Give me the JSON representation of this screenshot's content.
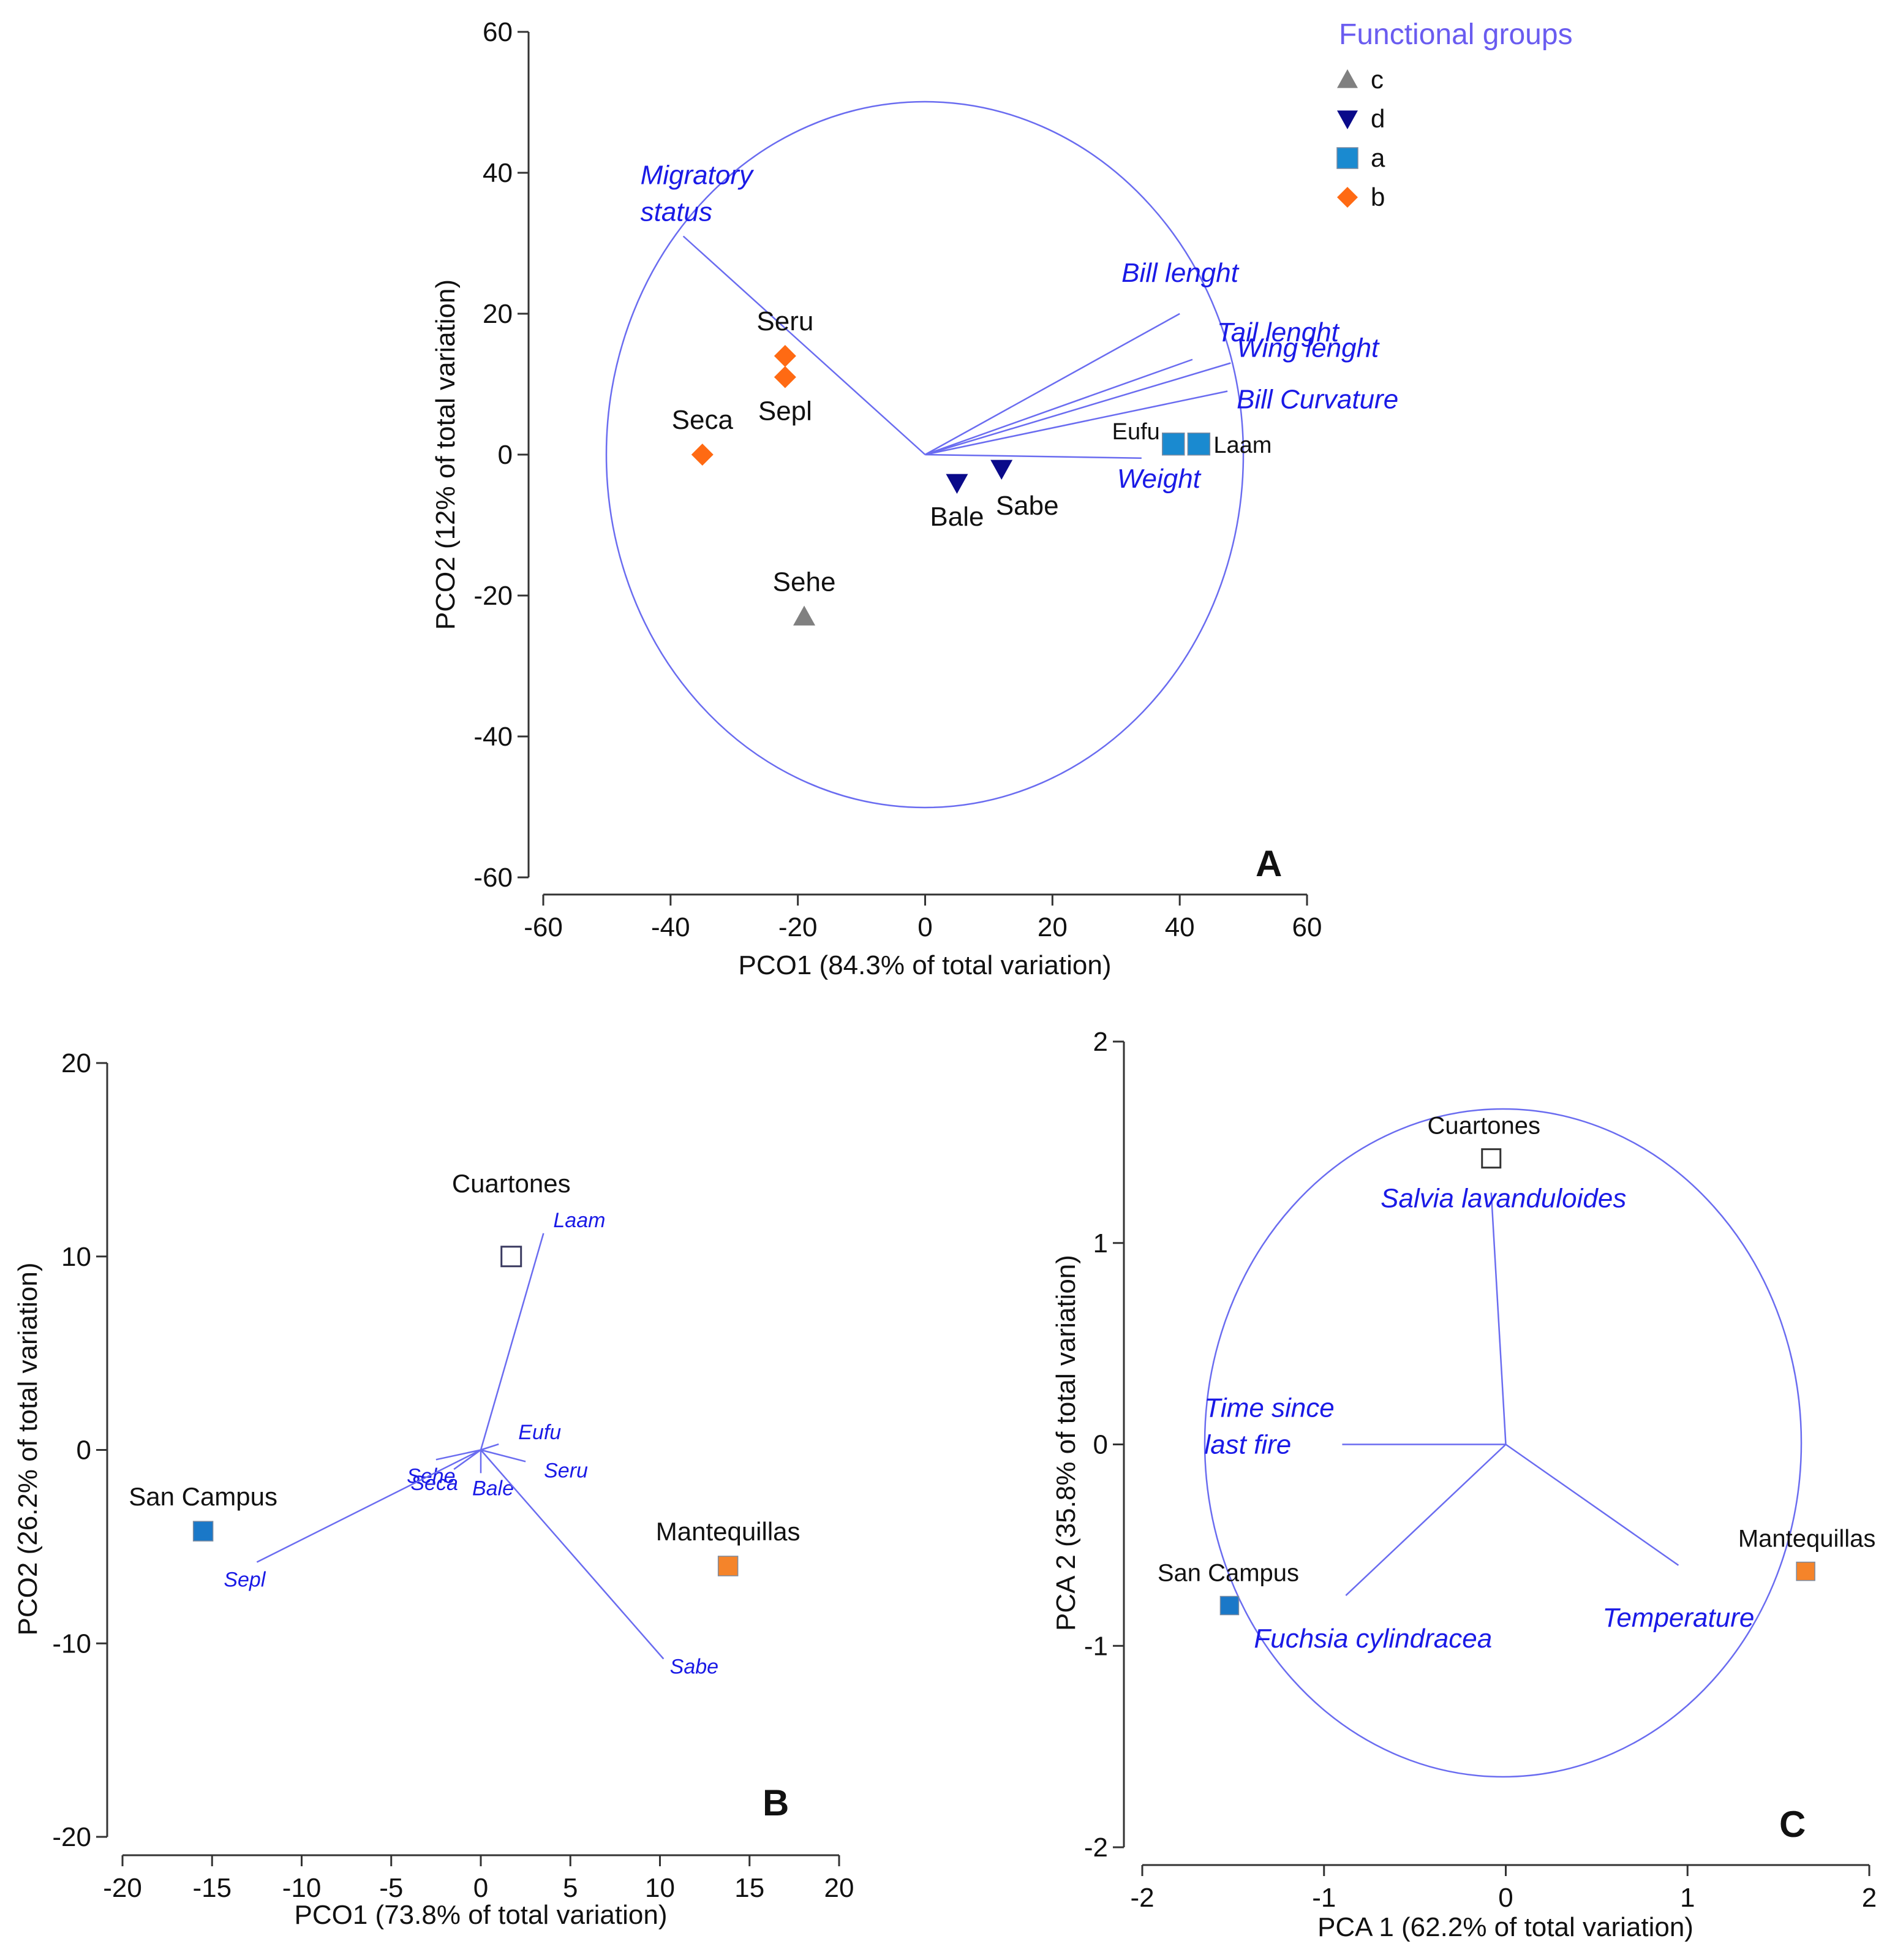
{
  "colors": {
    "group_a": "#1a8ad0",
    "group_b": "#ff6a13",
    "group_c": "#808080",
    "group_d": "#0a0a8a",
    "vector": "#6a6cf0",
    "vector_label": "#1a1ae6",
    "mantequillas": "#f5842a",
    "san_campus": "#1a78c8"
  },
  "chart_data": [
    {
      "id": "A",
      "type": "scatter",
      "panel_label": "A",
      "xlabel": "PCO1 (84.3% of total variation)",
      "ylabel": "PCO2 (12% of total variation)",
      "xlim": [
        -60,
        60
      ],
      "ylim": [
        -60,
        60
      ],
      "xticks": [
        -60,
        -40,
        -20,
        0,
        20,
        40,
        60
      ],
      "yticks": [
        -60,
        -40,
        -20,
        0,
        20,
        40,
        60
      ],
      "circle_radius": 50,
      "legend": {
        "title": "Functional groups",
        "entries": [
          {
            "label": "c",
            "marker": "triangle-up",
            "color": "#808080"
          },
          {
            "label": "d",
            "marker": "triangle-down",
            "color": "#0a0a8a"
          },
          {
            "label": "a",
            "marker": "square",
            "color": "#1a8ad0"
          },
          {
            "label": "b",
            "marker": "diamond",
            "color": "#ff6a13"
          }
        ]
      },
      "points": [
        {
          "label": "Seru",
          "x": -22,
          "y": 14,
          "marker": "diamond",
          "color": "#ff6a13",
          "label_pos": "above"
        },
        {
          "label": "Sepl",
          "x": -22,
          "y": 11,
          "marker": "diamond",
          "color": "#ff6a13",
          "label_pos": "below"
        },
        {
          "label": "Seca",
          "x": -35,
          "y": 0,
          "marker": "diamond",
          "color": "#ff6a13",
          "label_pos": "above"
        },
        {
          "label": "Sehe",
          "x": -19,
          "y": -23,
          "marker": "triangle-up",
          "color": "#808080",
          "label_pos": "above"
        },
        {
          "label": "Bale",
          "x": 5,
          "y": -4,
          "marker": "triangle-down",
          "color": "#0a0a8a",
          "label_pos": "below"
        },
        {
          "label": "Sabe",
          "x": 12,
          "y": -2,
          "marker": "triangle-down",
          "color": "#0a0a8a",
          "label_pos": "below-right"
        },
        {
          "label": "Eufu",
          "x": 39,
          "y": 1.5,
          "marker": "square",
          "color": "#1a8ad0",
          "label_pos": "left"
        },
        {
          "label": "Laam",
          "x": 43,
          "y": 1.5,
          "marker": "square",
          "color": "#1a8ad0",
          "label_pos": "right"
        }
      ],
      "vectors": [
        {
          "label": "Migratory status",
          "lines": [
            "Migratory",
            "status"
          ],
          "x": -38,
          "y": 31
        },
        {
          "label": "Bill lenght",
          "lines": [
            "Bill lenght"
          ],
          "x": 40,
          "y": 20
        },
        {
          "label": "Tail lenght",
          "lines": [
            "Tail lenght"
          ],
          "x": 42,
          "y": 13.5
        },
        {
          "label": "Wing lenght",
          "lines": [
            "Wing lenght"
          ],
          "x": 48,
          "y": 13
        },
        {
          "label": "Bill Curvature",
          "lines": [
            "Bill Curvature"
          ],
          "x": 47.5,
          "y": 9
        },
        {
          "label": "Weight",
          "lines": [
            "Weight"
          ],
          "x": 34,
          "y": -0.5
        }
      ]
    },
    {
      "id": "B",
      "type": "scatter",
      "panel_label": "B",
      "xlabel": "PCO1 (73.8% of total variation)",
      "ylabel": "PCO2 (26.2% of total variation)",
      "xlim": [
        -20,
        20
      ],
      "ylim": [
        -20,
        20
      ],
      "xticks": [
        -20,
        -15,
        -10,
        -5,
        0,
        5,
        10,
        15,
        20
      ],
      "yticks": [
        -20,
        -10,
        0,
        10,
        20
      ],
      "points": [
        {
          "label": "Cuartones",
          "x": 1.7,
          "y": 10,
          "marker": "square-open",
          "color": "#3a3a60",
          "label_pos": "above"
        },
        {
          "label": "San Campus",
          "x": -15.5,
          "y": -4.2,
          "marker": "square",
          "color": "#1a78c8",
          "label_pos": "above"
        },
        {
          "label": "Mantequillas",
          "x": 13.8,
          "y": -6,
          "marker": "square",
          "color": "#f5842a",
          "label_pos": "above"
        }
      ],
      "vectors": [
        {
          "label": "Laam",
          "x": 3.5,
          "y": 11.2
        },
        {
          "label": "Eufu",
          "x": 1,
          "y": 0.3
        },
        {
          "label": "Seru",
          "x": 2.5,
          "y": -0.6
        },
        {
          "label": "Sehe",
          "x": -2.5,
          "y": -0.5
        },
        {
          "label": "Seca",
          "x": -1.5,
          "y": -1
        },
        {
          "label": "Bale",
          "x": 0,
          "y": -1.2
        },
        {
          "label": "Sepl",
          "x": -12.5,
          "y": -5.8
        },
        {
          "label": "Sabe",
          "x": 10.2,
          "y": -10.8
        }
      ]
    },
    {
      "id": "C",
      "type": "scatter",
      "panel_label": "C",
      "xlabel": "PCA 1 (62.2% of total variation)",
      "ylabel": "PCA 2 (35.8%  of total variation)",
      "xlim": [
        -2,
        2
      ],
      "ylim": [
        -2,
        2
      ],
      "xticks": [
        -2,
        -1,
        0,
        1,
        2
      ],
      "yticks": [
        -2,
        -1,
        0,
        1,
        2
      ],
      "circle_radius": 1.65,
      "points": [
        {
          "label": "Cuartones",
          "x": -0.08,
          "y": 1.42,
          "marker": "square-open",
          "color": "#333333",
          "label_pos": "above"
        },
        {
          "label": "San Campus",
          "x": -1.52,
          "y": -0.8,
          "marker": "square",
          "color": "#1a78c8",
          "label_pos": "above"
        },
        {
          "label": "Mantequillas",
          "x": 1.65,
          "y": -0.63,
          "marker": "square",
          "color": "#f5842a",
          "label_pos": "above"
        }
      ],
      "vectors": [
        {
          "label": "Salvia lavanduloides",
          "lines": [
            "Salvia lavanduloides"
          ],
          "x": -0.08,
          "y": 1.25
        },
        {
          "label": "Time since last fire",
          "lines": [
            "Time since",
            "last fire"
          ],
          "x": -0.9,
          "y": 0
        },
        {
          "label": "Fuchsia cylindracea",
          "lines": [
            "Fuchsia cylindracea"
          ],
          "x": -0.88,
          "y": -0.75
        },
        {
          "label": "Temperature",
          "lines": [
            "Temperature"
          ],
          "x": 0.95,
          "y": -0.6
        }
      ]
    }
  ]
}
